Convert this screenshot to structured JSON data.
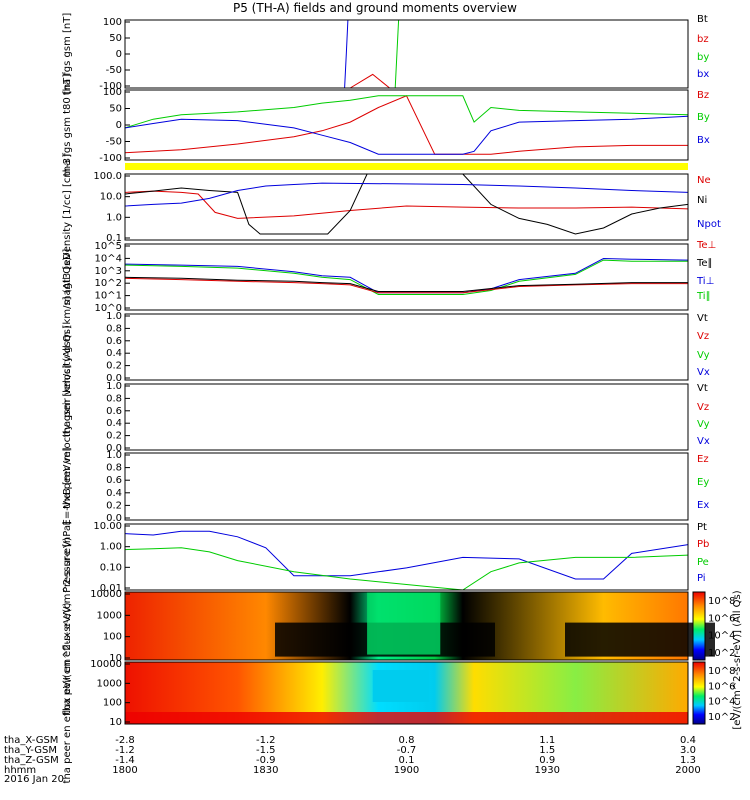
{
  "title": "P5 (TH-A) fields and ground moments overview",
  "footer": {
    "row_labels": [
      "tha_X-GSM",
      "tha_Y-GSM",
      "tha_Z-GSM",
      "hhmm",
      "2016 Jan 20"
    ],
    "x_values": [
      "-2.8",
      "-1.2",
      "0.8",
      "1.1",
      "0.4"
    ],
    "y_values": [
      "-1.2",
      "-1.5",
      "-0.7",
      "1.5",
      "3.0"
    ],
    "z_values": [
      "-1.4",
      "-0.9",
      "0.1",
      "0.9",
      "1.3"
    ],
    "hhmm": [
      "1800",
      "1830",
      "1900",
      "1930",
      "2000"
    ]
  },
  "colorbar_label": "[eV/(cm^2-s-sr-eV)] (All Qs)",
  "colorbar_ticks": [
    "10^8",
    "10^6",
    "10^4",
    "10^2"
  ],
  "colorbar2_ticks": [
    "10^8",
    "10^6",
    "10^4",
    "10^2"
  ],
  "colors": {
    "black": "#000000",
    "red": "#dd0000",
    "green": "#00cc00",
    "blue": "#0000dd",
    "yellow": "#ffff00"
  },
  "chart_data": [
    {
      "type": "line",
      "panel": "fgs",
      "ylabel": "tha fgs gsm [nT]",
      "ylim": [
        -100,
        100
      ],
      "yticks": [
        "100",
        "50",
        "0",
        "-50",
        "-100"
      ],
      "legend": [
        "Bt",
        "bz",
        "by",
        "bx"
      ],
      "series": [
        {
          "name": "bx",
          "color": "blue",
          "x": [
            0.39,
            0.393,
            0.396
          ],
          "y": [
            -100,
            0,
            100
          ]
        },
        {
          "name": "by",
          "color": "green",
          "x": [
            0.48,
            0.483,
            0.486
          ],
          "y": [
            -100,
            0,
            100
          ]
        },
        {
          "name": "bz",
          "color": "red",
          "x": [
            0.4,
            0.44,
            0.47
          ],
          "y": [
            -100,
            -60,
            -100
          ]
        }
      ]
    },
    {
      "type": "line",
      "panel": "fgs_t80",
      "ylabel": "tha fgs gsm t80 [nT]",
      "ylim": [
        -120,
        120
      ],
      "yticks": [
        "100",
        "50",
        "0",
        "-50",
        "-100"
      ],
      "legend": [
        "Bz",
        "By",
        "Bx"
      ],
      "series": [
        {
          "name": "Bz",
          "color": "red",
          "x": [
            0,
            0.1,
            0.2,
            0.3,
            0.35,
            0.4,
            0.45,
            0.5,
            0.55,
            0.6,
            0.65,
            0.7,
            0.8,
            0.9,
            1.0
          ],
          "y": [
            -95,
            -85,
            -65,
            -40,
            -20,
            10,
            60,
            100,
            -100,
            -100,
            -100,
            -90,
            -75,
            -70,
            -70
          ]
        },
        {
          "name": "By",
          "color": "green",
          "x": [
            0,
            0.05,
            0.1,
            0.2,
            0.3,
            0.35,
            0.4,
            0.45,
            0.55,
            0.6,
            0.62,
            0.65,
            0.7,
            0.8,
            0.9,
            1.0
          ],
          "y": [
            -10,
            20,
            35,
            45,
            60,
            75,
            85,
            100,
            100,
            100,
            10,
            60,
            50,
            45,
            40,
            35
          ]
        },
        {
          "name": "Bx",
          "color": "blue",
          "x": [
            0,
            0.05,
            0.1,
            0.2,
            0.3,
            0.35,
            0.4,
            0.45,
            0.55,
            0.6,
            0.62,
            0.65,
            0.7,
            0.8,
            0.9,
            1.0
          ],
          "y": [
            -10,
            5,
            20,
            15,
            -10,
            -35,
            -60,
            -100,
            -100,
            -100,
            -90,
            -20,
            10,
            15,
            20,
            30
          ]
        }
      ]
    },
    {
      "type": "line",
      "panel": "density",
      "scale": "log",
      "ylabel": "Density [1/cc] [cm-3]",
      "ylim": [
        0.05,
        100
      ],
      "yticks": [
        "100.0",
        "10.0",
        "1.0",
        "0.1"
      ],
      "legend": [
        "Ne",
        "Ni",
        "Npot"
      ],
      "series": [
        {
          "name": "Ne",
          "color": "red",
          "x": [
            0,
            0.05,
            0.1,
            0.13,
            0.16,
            0.2,
            0.3,
            0.4,
            0.5,
            0.6,
            0.7,
            0.8,
            0.9,
            0.95,
            1.0
          ],
          "y": [
            12,
            14,
            12,
            10,
            1.2,
            0.6,
            0.8,
            1.5,
            2.5,
            2.2,
            2.0,
            2.0,
            2.2,
            2.0,
            1.8
          ]
        },
        {
          "name": "Ni",
          "color": "black",
          "x": [
            0,
            0.05,
            0.1,
            0.15,
            0.2,
            0.22,
            0.24,
            0.3,
            0.36,
            0.4,
            0.43,
            0.6,
            0.65,
            0.7,
            0.75,
            0.8,
            0.85,
            0.9,
            0.95,
            1.0
          ],
          "y": [
            10,
            14,
            20,
            15,
            12,
            0.3,
            0.1,
            0.1,
            0.1,
            1.5,
            200,
            200,
            3,
            0.6,
            0.3,
            0.1,
            0.2,
            1.0,
            2.0,
            3.0
          ]
        },
        {
          "name": "Npot",
          "color": "blue",
          "x": [
            0,
            0.05,
            0.1,
            0.15,
            0.2,
            0.25,
            0.3,
            0.35,
            0.6,
            0.7,
            0.8,
            0.9,
            1.0
          ],
          "y": [
            2.5,
            3,
            3.5,
            6,
            15,
            25,
            30,
            35,
            30,
            25,
            20,
            15,
            12
          ]
        }
      ]
    },
    {
      "type": "line",
      "panel": "temperature",
      "scale": "log",
      "ylabel": "magt3 [eV]",
      "ylim": [
        1,
        100000
      ],
      "yticks": [
        "10^5",
        "10^4",
        "10^3",
        "10^2",
        "10^1",
        "10^0"
      ],
      "legend": [
        "Te⊥",
        "Te∥",
        "Ti⊥",
        "Ti∥"
      ],
      "series": [
        {
          "name": "Ti⊥",
          "color": "blue",
          "x": [
            0,
            0.1,
            0.2,
            0.3,
            0.35,
            0.4,
            0.45,
            0.6,
            0.65,
            0.7,
            0.8,
            0.85,
            0.9,
            1.0
          ],
          "y": [
            3000,
            2500,
            2000,
            800,
            400,
            300,
            20,
            20,
            40,
            200,
            600,
            8000,
            7000,
            6000
          ]
        },
        {
          "name": "Ti∥",
          "color": "green",
          "x": [
            0,
            0.1,
            0.2,
            0.3,
            0.35,
            0.4,
            0.45,
            0.6,
            0.65,
            0.7,
            0.8,
            0.85,
            0.9,
            1.0
          ],
          "y": [
            2500,
            2000,
            1500,
            600,
            300,
            200,
            15,
            15,
            30,
            150,
            500,
            6000,
            5000,
            5000
          ]
        },
        {
          "name": "Te⊥",
          "color": "red",
          "x": [
            0,
            0.1,
            0.2,
            0.3,
            0.35,
            0.4,
            0.45,
            0.6,
            0.7,
            0.8,
            0.9,
            1.0
          ],
          "y": [
            250,
            200,
            150,
            120,
            100,
            80,
            20,
            20,
            60,
            80,
            100,
            100
          ]
        },
        {
          "name": "Te∥",
          "color": "black",
          "x": [
            0,
            0.1,
            0.2,
            0.3,
            0.35,
            0.4,
            0.45,
            0.6,
            0.7,
            0.8,
            0.9,
            1.0
          ],
          "y": [
            300,
            250,
            180,
            150,
            120,
            100,
            25,
            25,
            70,
            90,
            120,
            120
          ]
        }
      ]
    },
    {
      "type": "line",
      "panel": "peir_velocity",
      "ylabel": "tha peir velocity gsm [km/s] (All Qs)",
      "ylim": [
        0,
        1
      ],
      "yticks": [
        "1.0",
        "0.8",
        "0.6",
        "0.4",
        "0.2",
        "0.0"
      ],
      "legend": [
        "Vt",
        "Vz",
        "Vy",
        "Vx"
      ],
      "series": []
    },
    {
      "type": "line",
      "panel": "peer_velocity",
      "ylabel": "tha peer velocity gsm [km/s] (All Qs)",
      "ylim": [
        0,
        1
      ],
      "yticks": [
        "1.0",
        "0.8",
        "0.6",
        "0.4",
        "0.2",
        "0.0"
      ],
      "legend": [
        "Vt",
        "Vz",
        "Vy",
        "Vx"
      ],
      "series": []
    },
    {
      "type": "line",
      "panel": "efield",
      "ylabel": "E=-VxB [mV/m]",
      "ylim": [
        0,
        1
      ],
      "yticks": [
        "1.0",
        "0.8",
        "0.6",
        "0.4",
        "0.2",
        "0.0"
      ],
      "legend": [
        "Ez",
        "Ey",
        "Ex"
      ],
      "series": []
    },
    {
      "type": "line",
      "panel": "pressure",
      "scale": "log",
      "ylabel": "Pressure [nPa]",
      "ylim": [
        0.005,
        20
      ],
      "yticks": [
        "10.00",
        "1.00",
        "0.10",
        "0.01"
      ],
      "legend": [
        "Pt",
        "Pb",
        "Pe",
        "Pi"
      ],
      "series": [
        {
          "name": "Pi",
          "color": "blue",
          "x": [
            0,
            0.05,
            0.1,
            0.15,
            0.2,
            0.25,
            0.3,
            0.4,
            0.5,
            0.6,
            0.7,
            0.8,
            0.85,
            0.9,
            1.0
          ],
          "y": [
            6,
            5,
            8,
            8,
            4,
            1,
            0.03,
            0.03,
            0.08,
            0.3,
            0.25,
            0.02,
            0.02,
            0.5,
            1.5
          ]
        },
        {
          "name": "Pe",
          "color": "green",
          "x": [
            0,
            0.05,
            0.1,
            0.15,
            0.2,
            0.3,
            0.4,
            0.5,
            0.6,
            0.65,
            0.7,
            0.8,
            0.9,
            1.0
          ],
          "y": [
            0.8,
            0.9,
            1.0,
            0.6,
            0.2,
            0.05,
            0.02,
            0.01,
            0.005,
            0.05,
            0.15,
            0.3,
            0.3,
            0.4
          ]
        }
      ]
    },
    {
      "type": "heatmap",
      "panel": "peir_en_eflux",
      "ylabel": "tha peir en eflux eV/(cm^2-s-sr-eV)",
      "ylim": [
        10,
        20000
      ],
      "scale": "log",
      "yticks": [
        "10000",
        "1000",
        "100",
        "10"
      ]
    },
    {
      "type": "heatmap",
      "panel": "peer_en_eflux",
      "ylabel": "tha peer en eflux eV/(cm^2-s-sr-eV)",
      "ylim": [
        10,
        20000
      ],
      "scale": "log",
      "yticks": [
        "10000",
        "1000",
        "100",
        "10"
      ]
    }
  ]
}
